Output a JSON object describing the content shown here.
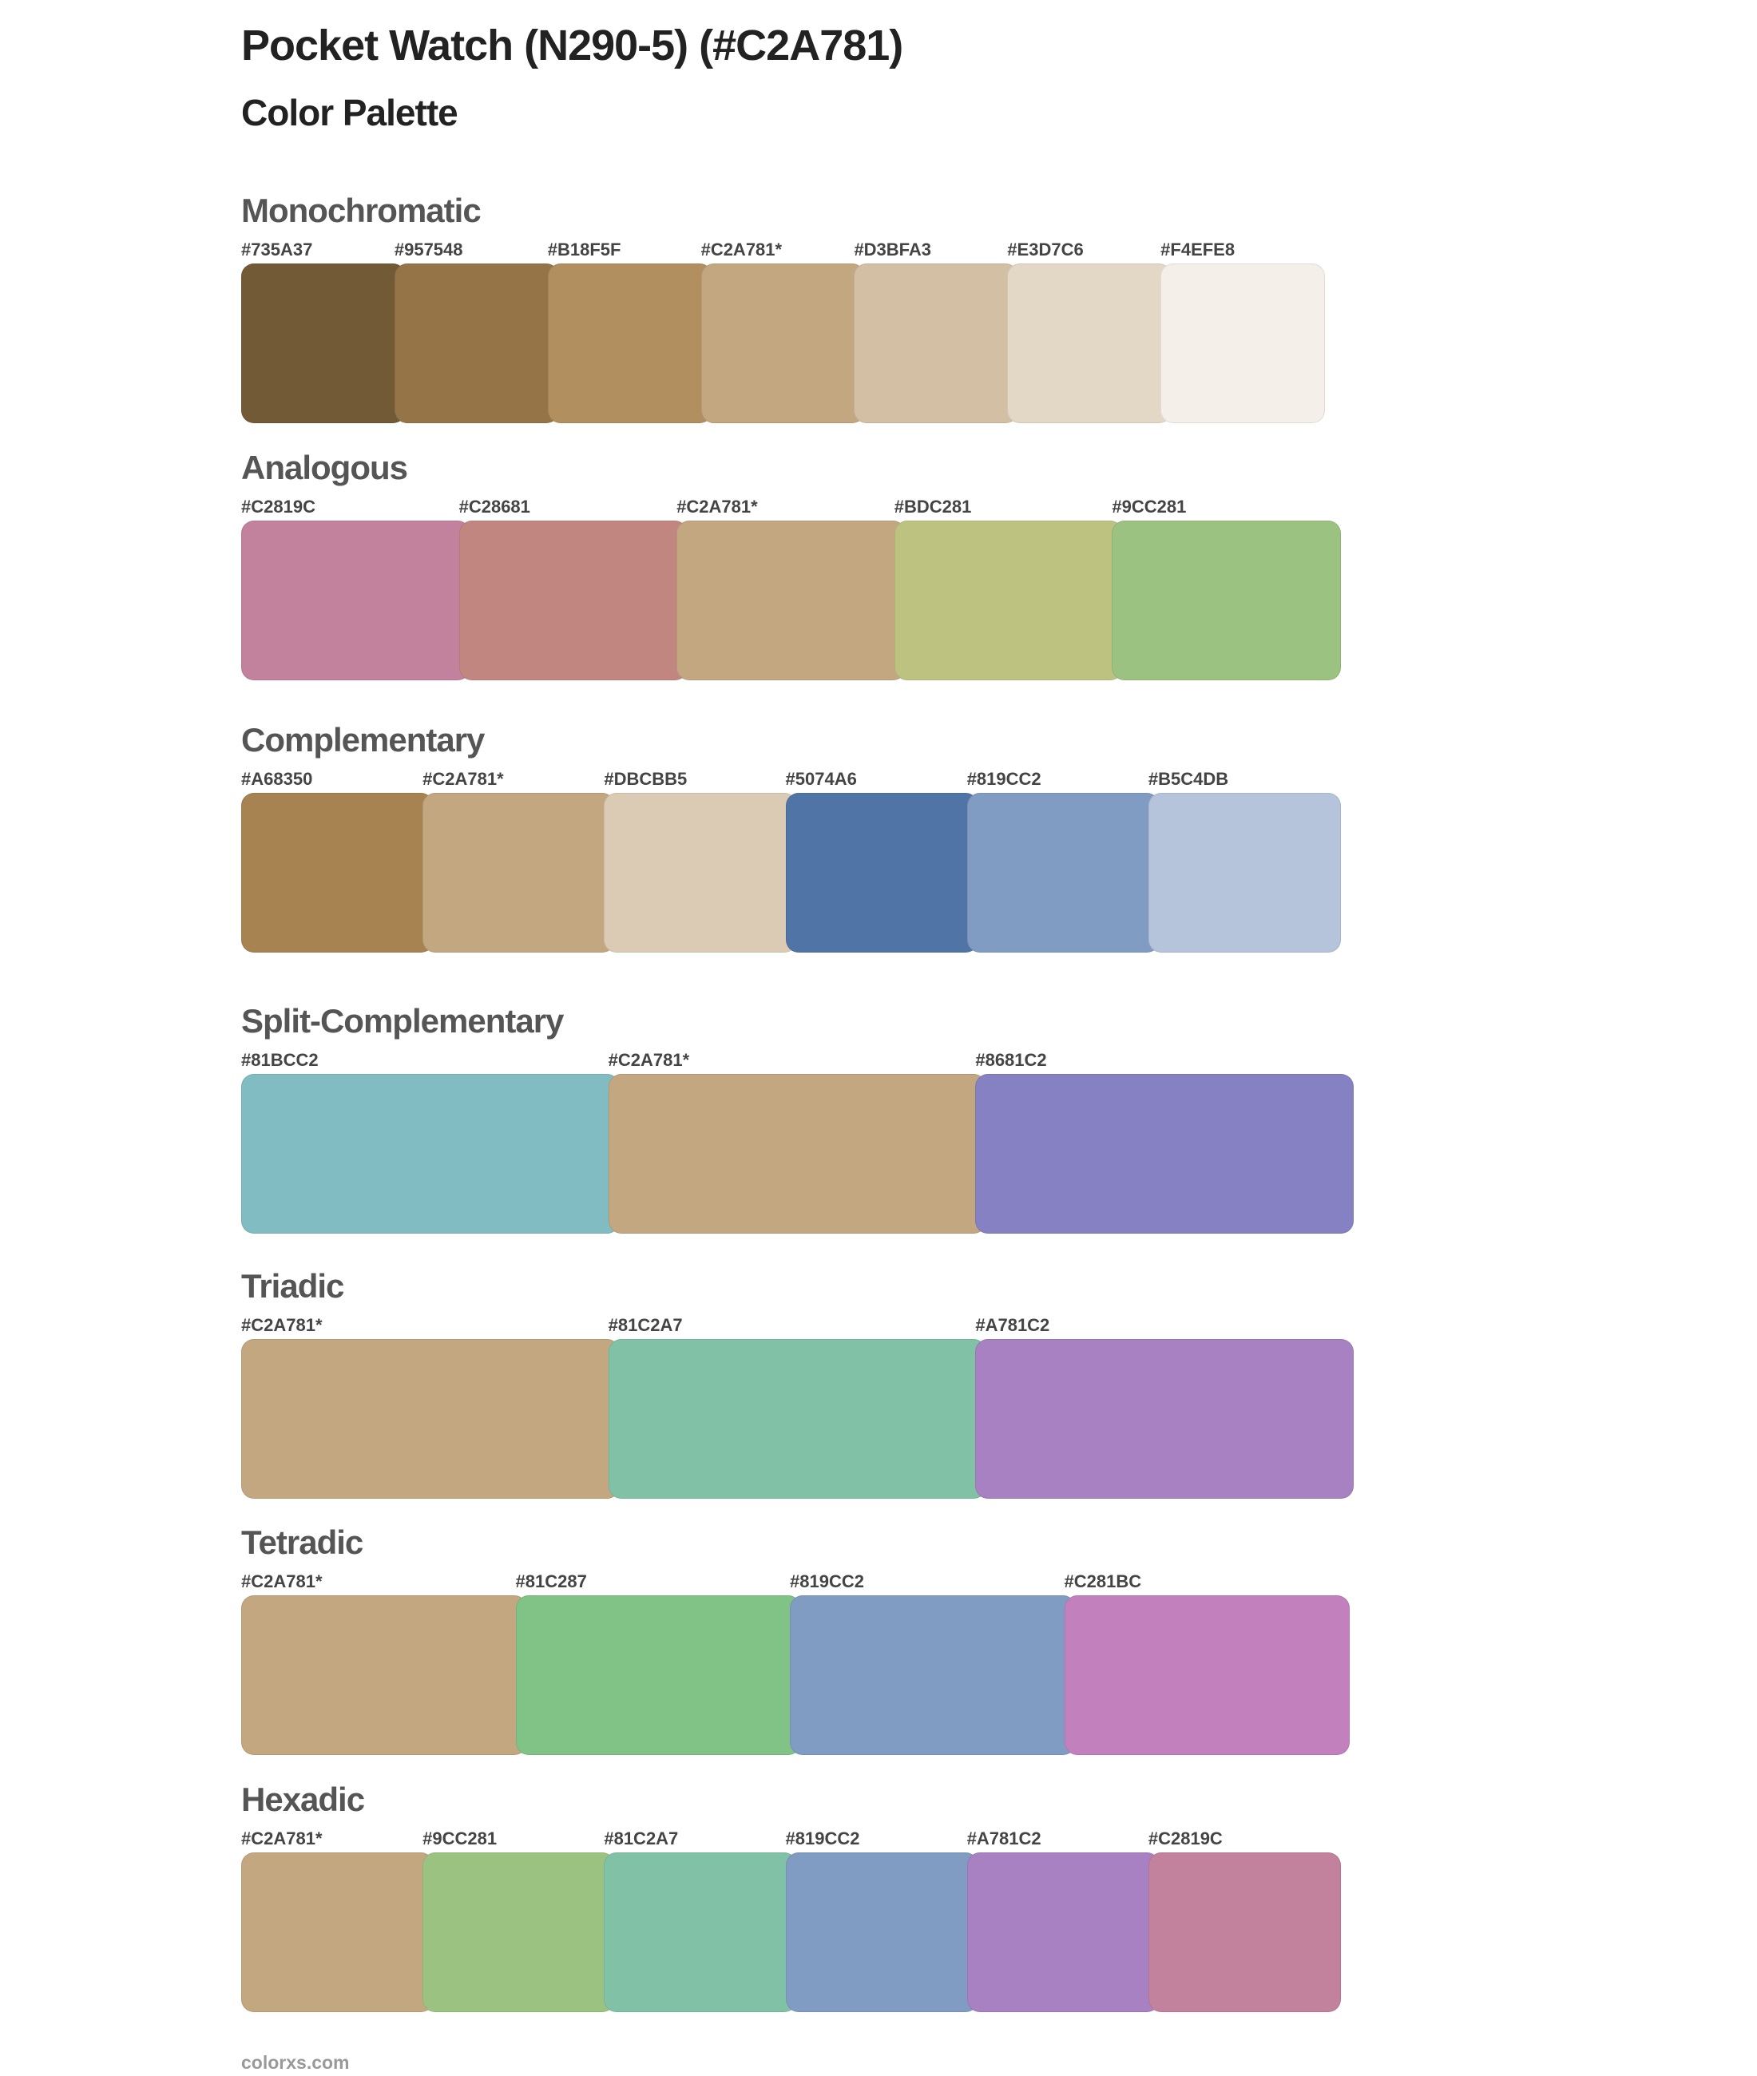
{
  "header": {
    "title": "Pocket Watch (N290-5) (#C2A781)",
    "subtitle": "Color Palette"
  },
  "sections": [
    {
      "id": "monochromatic",
      "name": "Monochromatic",
      "swatches": [
        {
          "label": "#735A37",
          "color": "#735A37"
        },
        {
          "label": "#957548",
          "color": "#957548"
        },
        {
          "label": "#B18F5F",
          "color": "#B18F5F"
        },
        {
          "label": "#C2A781*",
          "color": "#C2A781"
        },
        {
          "label": "#D3BFA3",
          "color": "#D3BFA3"
        },
        {
          "label": "#E3D7C6",
          "color": "#E3D7C6"
        },
        {
          "label": "#F4EFE8",
          "color": "#F4EFE8"
        }
      ]
    },
    {
      "id": "analogous",
      "name": "Analogous",
      "swatches": [
        {
          "label": "#C2819C",
          "color": "#C2819C"
        },
        {
          "label": "#C28681",
          "color": "#C28681"
        },
        {
          "label": "#C2A781*",
          "color": "#C2A781"
        },
        {
          "label": "#BDC281",
          "color": "#BDC281"
        },
        {
          "label": "#9CC281",
          "color": "#9CC281"
        }
      ]
    },
    {
      "id": "complementary",
      "name": "Complementary",
      "swatches": [
        {
          "label": "#A68350",
          "color": "#A68350"
        },
        {
          "label": "#C2A781*",
          "color": "#C2A781"
        },
        {
          "label": "#DBCBB5",
          "color": "#DBCBB5"
        },
        {
          "label": "#5074A6",
          "color": "#5074A6"
        },
        {
          "label": "#819CC2",
          "color": "#819CC2"
        },
        {
          "label": "#B5C4DB",
          "color": "#B5C4DB"
        }
      ]
    },
    {
      "id": "split-complementary",
      "name": "Split-Complementary",
      "swatches": [
        {
          "label": "#81BCC2",
          "color": "#81BCC2"
        },
        {
          "label": "#C2A781*",
          "color": "#C2A781"
        },
        {
          "label": "#8681C2",
          "color": "#8681C2"
        }
      ]
    },
    {
      "id": "triadic",
      "name": "Triadic",
      "swatches": [
        {
          "label": "#C2A781*",
          "color": "#C2A781"
        },
        {
          "label": "#81C2A7",
          "color": "#81C2A7"
        },
        {
          "label": "#A781C2",
          "color": "#A781C2"
        }
      ]
    },
    {
      "id": "tetradic",
      "name": "Tetradic",
      "swatches": [
        {
          "label": "#C2A781*",
          "color": "#C2A781"
        },
        {
          "label": "#81C287",
          "color": "#81C287"
        },
        {
          "label": "#819CC2",
          "color": "#819CC2"
        },
        {
          "label": "#C281BC",
          "color": "#C281BC"
        }
      ]
    },
    {
      "id": "hexadic",
      "name": "Hexadic",
      "swatches": [
        {
          "label": "#C2A781*",
          "color": "#C2A781"
        },
        {
          "label": "#9CC281",
          "color": "#9CC281"
        },
        {
          "label": "#81C2A7",
          "color": "#81C2A7"
        },
        {
          "label": "#819CC2",
          "color": "#819CC2"
        },
        {
          "label": "#A781C2",
          "color": "#A781C2"
        },
        {
          "label": "#C2819C",
          "color": "#C2819C"
        }
      ]
    }
  ],
  "footer": {
    "text": "colorxs.com"
  }
}
